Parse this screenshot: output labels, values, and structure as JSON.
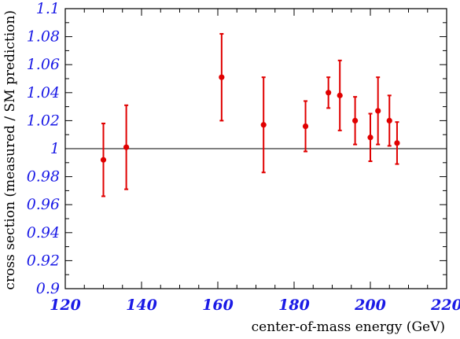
{
  "chart_data": {
    "type": "scatter",
    "title": "",
    "xlabel": "center-of-mass energy (GeV)",
    "ylabel": "cross section (measured / SM prediction)",
    "xlim": [
      120,
      220
    ],
    "ylim": [
      0.9,
      1.1
    ],
    "x_ticks": [
      "120",
      "140",
      "160",
      "180",
      "200",
      "220"
    ],
    "y_ticks": [
      "0.9",
      "0.92",
      "0.94",
      "0.96",
      "0.98",
      "1",
      "1.02",
      "1.04",
      "1.06",
      "1.08",
      "1.1"
    ],
    "reference_line": 1.0,
    "grid": false,
    "colors": {
      "points": "#e00000",
      "tick_labels": "#1a1ae6",
      "axis": "#000000"
    },
    "points": [
      {
        "x": 130,
        "y": 0.992,
        "err": 0.026
      },
      {
        "x": 136,
        "y": 1.001,
        "err": 0.03
      },
      {
        "x": 161,
        "y": 1.051,
        "err": 0.031
      },
      {
        "x": 172,
        "y": 1.017,
        "err": 0.034
      },
      {
        "x": 183,
        "y": 1.016,
        "err": 0.018
      },
      {
        "x": 189,
        "y": 1.04,
        "err": 0.011
      },
      {
        "x": 192,
        "y": 1.038,
        "err": 0.025
      },
      {
        "x": 196,
        "y": 1.02,
        "err": 0.017
      },
      {
        "x": 200,
        "y": 1.008,
        "err": 0.017
      },
      {
        "x": 202,
        "y": 1.027,
        "err": 0.024
      },
      {
        "x": 205,
        "y": 1.02,
        "err": 0.018
      },
      {
        "x": 207,
        "y": 1.004,
        "err": 0.015
      }
    ]
  }
}
